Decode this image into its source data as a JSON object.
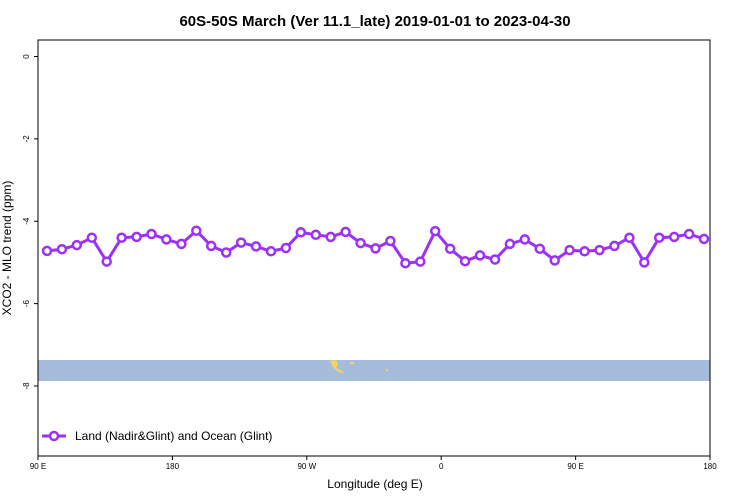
{
  "chart_data": {
    "type": "line",
    "title": "60S-50S March (Ver 11.1_late)   2019-01-01 to 2023-04-30",
    "xlabel": "Longitude (deg E)",
    "ylabel": "XCO2 - MLO trend (ppm)",
    "xlim": [
      90,
      540
    ],
    "ylim": [
      -9.7,
      0.4
    ],
    "x_ticks": [
      {
        "value": 90,
        "label": "90 E"
      },
      {
        "value": 180,
        "label": "180"
      },
      {
        "value": 270,
        "label": "90 W"
      },
      {
        "value": 360,
        "label": "0"
      },
      {
        "value": 450,
        "label": "90 E"
      },
      {
        "value": 540,
        "label": "180"
      }
    ],
    "y_ticks": [
      {
        "value": 0,
        "label": "0"
      },
      {
        "value": -2,
        "label": "-2"
      },
      {
        "value": -4,
        "label": "-4"
      },
      {
        "value": -6,
        "label": "-6"
      },
      {
        "value": -8,
        "label": "-8"
      }
    ],
    "series": [
      {
        "name": "Land (Nadir&Glint) and Ocean (Glint)",
        "color": "#9b30ff",
        "marker": "open-circle",
        "x": [
          96,
          106,
          116,
          126,
          136,
          146,
          156,
          166,
          176,
          186,
          196,
          206,
          216,
          226,
          236,
          246,
          256,
          266,
          276,
          286,
          296,
          306,
          316,
          326,
          336,
          346,
          356,
          366,
          376,
          386,
          396,
          406,
          416,
          426,
          436,
          446,
          456,
          466,
          476,
          486,
          496,
          506,
          516,
          526,
          536
        ],
        "y": [
          -4.72,
          -4.68,
          -4.58,
          -4.4,
          -4.98,
          -4.4,
          -4.38,
          -4.31,
          -4.44,
          -4.55,
          -4.23,
          -4.6,
          -4.76,
          -4.52,
          -4.61,
          -4.73,
          -4.65,
          -4.27,
          -4.33,
          -4.38,
          -4.26,
          -4.53,
          -4.66,
          -4.48,
          -5.02,
          -4.98,
          -4.24,
          -4.67,
          -4.97,
          -4.83,
          -4.93,
          -4.55,
          -4.44,
          -4.67,
          -4.95,
          -4.7,
          -4.73,
          -4.7,
          -4.6,
          -4.4,
          -5.0,
          -4.4,
          -4.38,
          -4.31,
          -4.43
        ]
      }
    ],
    "legend": {
      "position": "bottom-left"
    },
    "grid": false,
    "map_strip": {
      "ocean_color": "#a5bddb",
      "land_color": "#f5d35e"
    }
  }
}
